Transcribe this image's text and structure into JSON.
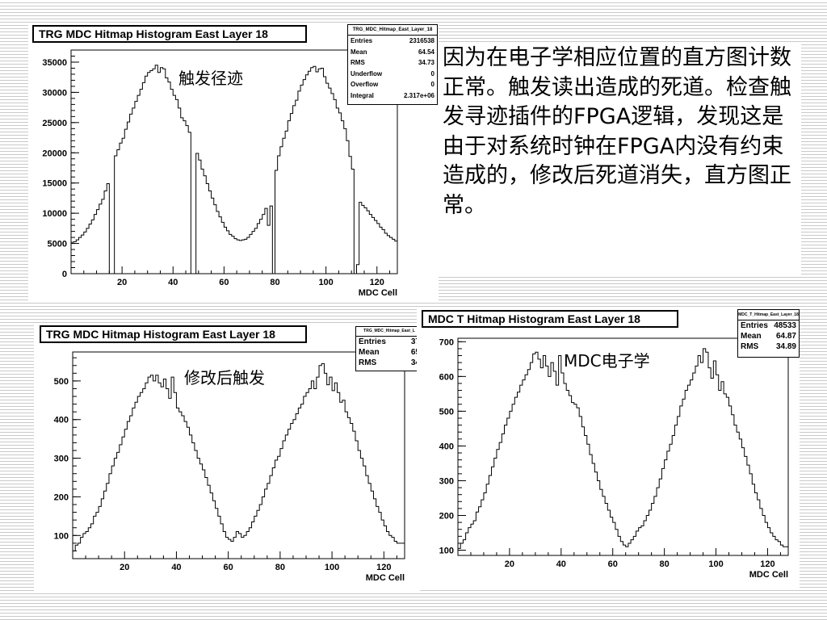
{
  "description": "因为在电子学相应位置的直方图计数正常。触发读出造成的死道。检查触发寻迹插件的FPGA逻辑，发现这是由于对系统时钟在FPGA内没有约束造成的，修改后死道消失，直方图正常。",
  "charts": [
    {
      "id": "top",
      "title": "TRG MDC Hitmap Histogram East Layer 18",
      "annotation": "触发径迹",
      "stats": {
        "name": "TRG_MDC_Hitmap_East_Layer_18",
        "rows": [
          {
            "label": "Entries",
            "value": "2316538"
          },
          {
            "label": "Mean",
            "value": "64.54"
          },
          {
            "label": "RMS",
            "value": "34.73"
          },
          {
            "label": "Underflow",
            "value": "0"
          },
          {
            "label": "Overflow",
            "value": "0"
          },
          {
            "label": "Integral",
            "value": "2.317e+06"
          }
        ]
      }
    },
    {
      "id": "bl",
      "title": "TRG MDC Hitmap Histogram East Layer 18",
      "annotation": "修改后触发",
      "stats": {
        "name": "TRG_MDC_Hitmap_East_L",
        "rows": [
          {
            "label": "Entries",
            "value": "37"
          },
          {
            "label": "Mean",
            "value": "65"
          },
          {
            "label": "RMS",
            "value": "34"
          }
        ]
      }
    },
    {
      "id": "br",
      "title": "MDC T Hitmap Histogram East Layer 18",
      "annotation": "MDC电子学",
      "stats": {
        "name": "MDC_T_Hitmap_East_Layer_18",
        "rows": [
          {
            "label": "Entries",
            "value": "48533"
          },
          {
            "label": "Mean",
            "value": "64.87"
          },
          {
            "label": "RMS",
            "value": "34.89"
          }
        ]
      }
    }
  ],
  "chart_data": [
    {
      "type": "histogram",
      "title": "TRG MDC Hitmap Histogram East Layer 18",
      "xlabel": "MDC Cell",
      "ylabel": "",
      "xlim": [
        0,
        128
      ],
      "ylim": [
        0,
        37000
      ],
      "xticks": [
        20,
        40,
        60,
        80,
        100,
        120
      ],
      "yticks": [
        0,
        5000,
        10000,
        15000,
        20000,
        25000,
        30000,
        35000
      ],
      "bin_width": 1,
      "values": [
        5200,
        5300,
        5600,
        6000,
        6400,
        6900,
        7500,
        8200,
        8900,
        9800,
        10600,
        11500,
        12300,
        13700,
        14900,
        0,
        0,
        19500,
        20500,
        21600,
        22400,
        23900,
        25100,
        26400,
        27400,
        28500,
        29500,
        30500,
        31600,
        32700,
        33300,
        33600,
        33900,
        34500,
        33300,
        34100,
        33900,
        32400,
        31700,
        30500,
        29500,
        28800,
        27400,
        25800,
        25300,
        24500,
        23400,
        0,
        0,
        19900,
        18800,
        17300,
        16200,
        14900,
        13700,
        12500,
        11400,
        10300,
        9400,
        8500,
        7700,
        7100,
        6500,
        6200,
        5800,
        5600,
        5500,
        5600,
        5700,
        6000,
        6500,
        7000,
        7500,
        8300,
        9000,
        9800,
        10800,
        8000,
        11200,
        0,
        17100,
        19500,
        21000,
        22400,
        23600,
        25300,
        26500,
        27800,
        28700,
        30200,
        31200,
        32100,
        32900,
        33500,
        34100,
        34300,
        33400,
        33900,
        34000,
        32600,
        31500,
        30700,
        29800,
        28800,
        27400,
        26600,
        25300,
        24000,
        22000,
        19400,
        17300,
        0,
        1500,
        11800,
        11300,
        10900,
        10400,
        9800,
        9300,
        8800,
        8300,
        7700,
        7300,
        6700,
        6300,
        6000,
        5700,
        5400
      ]
    },
    {
      "type": "histogram",
      "title": "TRG MDC Hitmap Histogram East Layer 18",
      "xlabel": "MDC Cell",
      "ylabel": "",
      "xlim": [
        0,
        128
      ],
      "ylim": [
        40,
        575
      ],
      "xticks": [
        20,
        40,
        60,
        80,
        100,
        120
      ],
      "yticks": [
        100,
        200,
        300,
        400,
        500
      ],
      "bin_width": 1,
      "values": [
        60,
        75,
        80,
        95,
        105,
        110,
        120,
        130,
        150,
        160,
        175,
        195,
        215,
        235,
        260,
        280,
        300,
        315,
        335,
        355,
        375,
        395,
        410,
        430,
        445,
        460,
        470,
        480,
        495,
        510,
        515,
        500,
        515,
        495,
        485,
        505,
        480,
        455,
        510,
        470,
        430,
        420,
        410,
        395,
        380,
        360,
        340,
        320,
        300,
        285,
        270,
        250,
        230,
        210,
        190,
        170,
        150,
        130,
        110,
        95,
        90,
        85,
        95,
        110,
        105,
        95,
        100,
        110,
        120,
        135,
        150,
        165,
        180,
        200,
        220,
        235,
        255,
        275,
        295,
        305,
        325,
        345,
        360,
        375,
        390,
        400,
        415,
        430,
        440,
        460,
        470,
        480,
        500,
        480,
        510,
        540,
        545,
        520,
        490,
        510,
        475,
        495,
        470,
        445,
        450,
        420,
        405,
        390,
        370,
        345,
        320,
        300,
        280,
        255,
        235,
        215,
        195,
        175,
        160,
        140,
        125,
        110,
        100,
        95,
        85,
        80,
        80,
        80
      ]
    },
    {
      "type": "histogram",
      "title": "MDC T Hitmap Histogram East Layer 18",
      "xlabel": "MDC Cell",
      "ylabel": "",
      "xlim": [
        0,
        128
      ],
      "ylim": [
        85,
        710
      ],
      "xticks": [
        20,
        40,
        60,
        80,
        100,
        120
      ],
      "yticks": [
        100,
        200,
        300,
        400,
        500,
        600,
        700
      ],
      "bin_width": 1,
      "values": [
        105,
        120,
        130,
        150,
        165,
        175,
        185,
        210,
        225,
        245,
        265,
        290,
        315,
        340,
        365,
        390,
        410,
        435,
        460,
        480,
        500,
        520,
        540,
        555,
        575,
        590,
        605,
        620,
        640,
        665,
        670,
        650,
        625,
        660,
        630,
        600,
        640,
        615,
        575,
        660,
        610,
        580,
        560,
        545,
        525,
        520,
        510,
        485,
        455,
        430,
        405,
        375,
        350,
        325,
        300,
        275,
        255,
        235,
        215,
        195,
        180,
        160,
        140,
        125,
        115,
        110,
        120,
        130,
        140,
        155,
        165,
        170,
        185,
        200,
        215,
        235,
        255,
        280,
        305,
        335,
        360,
        385,
        405,
        430,
        460,
        485,
        515,
        535,
        560,
        575,
        590,
        610,
        630,
        660,
        640,
        680,
        670,
        625,
        595,
        645,
        605,
        560,
        585,
        550,
        540,
        515,
        490,
        460,
        440,
        420,
        395,
        370,
        345,
        320,
        290,
        265,
        245,
        220,
        200,
        180,
        165,
        150,
        140,
        130,
        125,
        115,
        110,
        110
      ]
    }
  ]
}
